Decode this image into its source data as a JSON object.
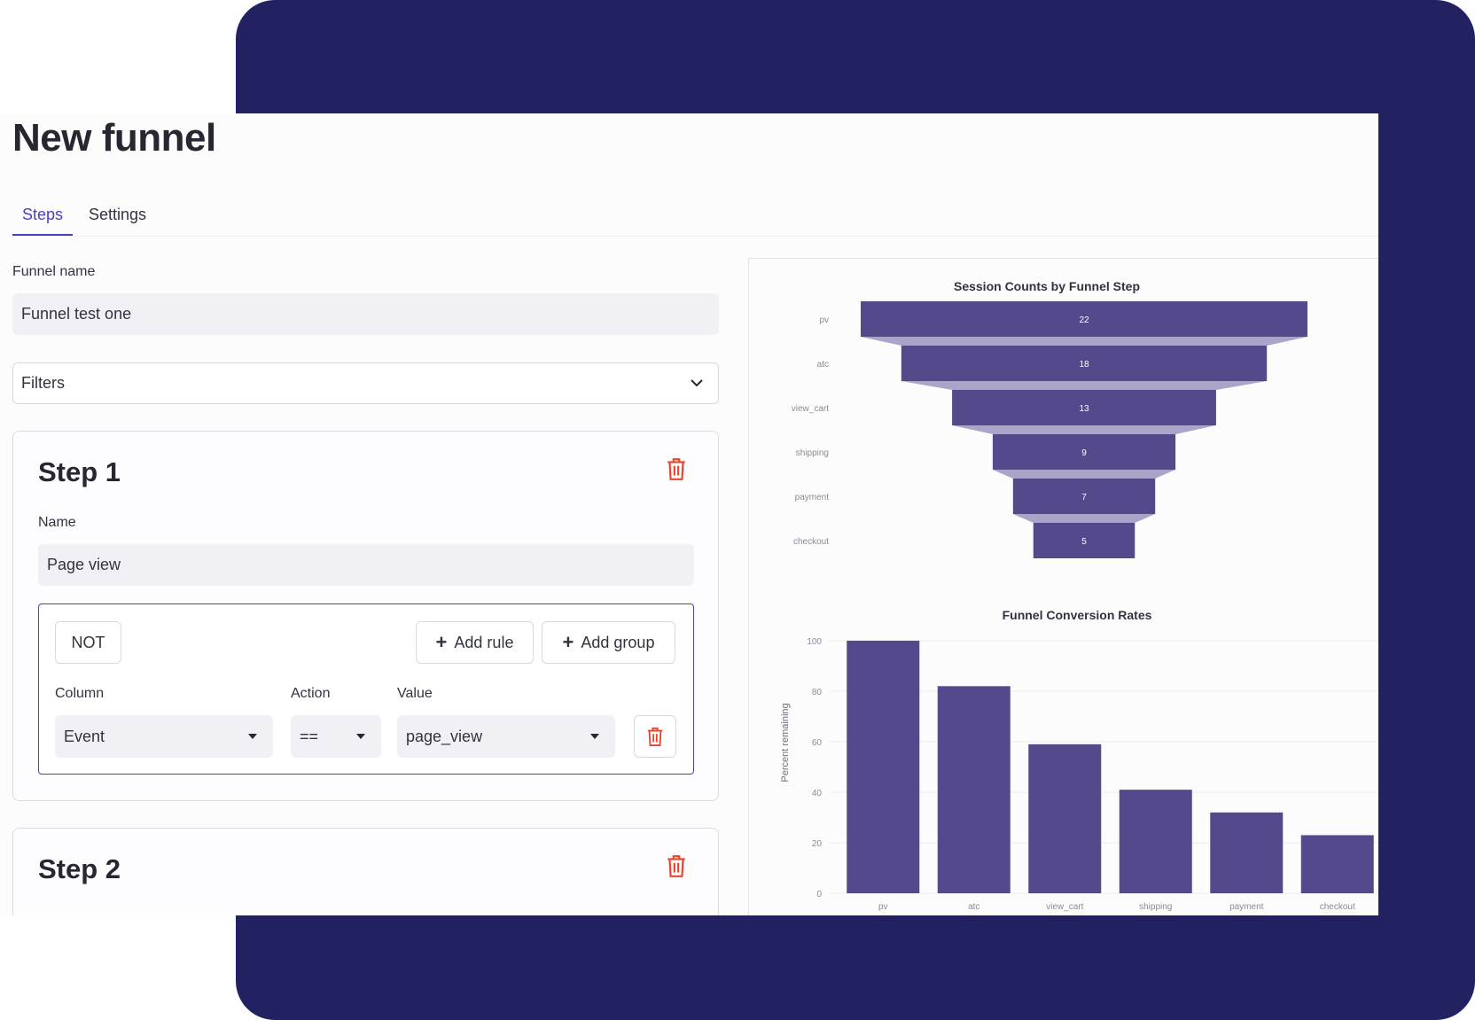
{
  "page": {
    "title": "New funnel"
  },
  "tabs": [
    {
      "label": "Steps",
      "active": true
    },
    {
      "label": "Settings",
      "active": false
    }
  ],
  "form": {
    "funnel_name_label": "Funnel name",
    "funnel_name_value": "Funnel test one",
    "filters_label": "Filters"
  },
  "steps": [
    {
      "title": "Step 1",
      "name_label": "Name",
      "name_value": "Page view",
      "group": {
        "not_label": "NOT",
        "add_rule_label": "Add rule",
        "add_group_label": "Add group",
        "column_label": "Column",
        "action_label": "Action",
        "value_label": "Value",
        "column_value": "Event",
        "action_value": "==",
        "value_value": "page_view"
      }
    },
    {
      "title": "Step 2"
    }
  ],
  "colors": {
    "accent": "#4a3fc7",
    "bar": "#54498a",
    "funnel_connector": "#aaa5c8",
    "danger": "#e8452c",
    "background": "#222262"
  },
  "chart_data": [
    {
      "type": "funnel",
      "title": "Session Counts by Funnel Step",
      "categories": [
        "pv",
        "atc",
        "view_cart",
        "shipping",
        "payment",
        "checkout"
      ],
      "values": [
        22,
        18,
        13,
        9,
        7,
        5
      ]
    },
    {
      "type": "bar",
      "title": "Funnel Conversion Rates",
      "ylabel": "Percent remaining",
      "xlabel": "",
      "categories": [
        "pv",
        "atc",
        "view_cart",
        "shipping",
        "payment",
        "checkout"
      ],
      "values": [
        100,
        82,
        59,
        41,
        32,
        23
      ],
      "ylim": [
        0,
        100
      ],
      "yticks": [
        "0",
        "20",
        "40",
        "60",
        "80",
        "100"
      ],
      "grid": true
    }
  ]
}
